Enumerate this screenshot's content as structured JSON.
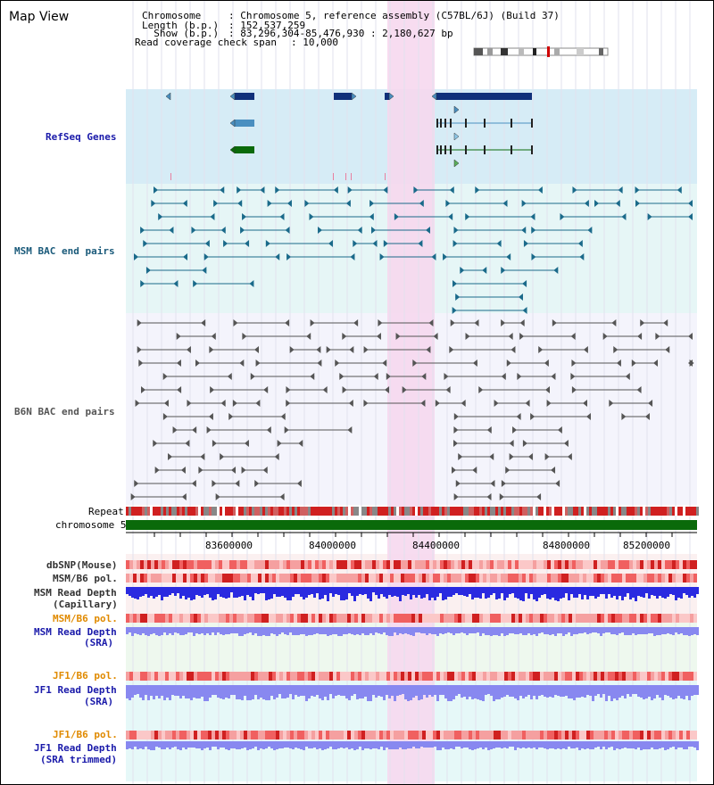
{
  "title": "Map View",
  "header": {
    "chrom_key": "Chromosome",
    "chrom_val": ": Chromosome 5, reference assembly (C57BL/6J) (Build 37)",
    "length_key": "Length (b.p.)",
    "length_val": ": 152,537,259",
    "show_key": "  Show (b.p.)",
    "show_val": ": 83,296,304-85,476,930 : 2,180,627 bp",
    "span_key": "Read coverage check span",
    "span_val": ": 10,000"
  },
  "tracks": {
    "refseq": "RefSeq Genes",
    "msm_bac": "MSM BAC end pairs",
    "b6n_bac": "B6N BAC end pairs",
    "repeat": "Repeat",
    "chromosome": "chromosome 5",
    "dbsnp": "dbSNP(Mouse)",
    "msm_b6_pol_1": "MSM/B6 pol.",
    "msm_read_depth_cap_1": "MSM Read Depth",
    "msm_read_depth_cap_2": "(Capillary)",
    "msm_b6_pol_2": "MSM/B6 pol.",
    "msm_read_depth_sra_1": "MSM Read Depth",
    "msm_read_depth_sra_2": "(SRA)",
    "jf1_b6_pol_1": "JF1/B6 pol.",
    "jf1_read_depth_1": "JF1 Read Depth",
    "jf1_read_depth_2": "(SRA)",
    "jf1_b6_pol_2": "JF1/B6 pol.",
    "jf1_read_depth_trim_1": "JF1 Read Depth",
    "jf1_read_depth_trim_2": "(SRA trimmed)"
  },
  "axis": {
    "ticks": [
      "83600000",
      "84000000",
      "84400000",
      "84800000",
      "85200000"
    ]
  },
  "colors": {
    "refseq_bg": "#d6ecf6",
    "msm_bg": "#e6f6f6",
    "b6n_bg": "#f4f4fc",
    "highlight": "#f6d8ee",
    "gene_dark": "#10307a",
    "gene_mid": "#4a8fc0",
    "gene_green": "#0a6a0a",
    "msm_line": "#1a6a8a",
    "b6n_line": "#555555",
    "chrom_green": "#0a6a0a",
    "depth_blue": "#2a2ae0",
    "depth_light": "#8888f0",
    "label_blue": "#1a1aaa",
    "label_teal": "#1a5a7a",
    "label_orange": "#e08a00"
  }
}
